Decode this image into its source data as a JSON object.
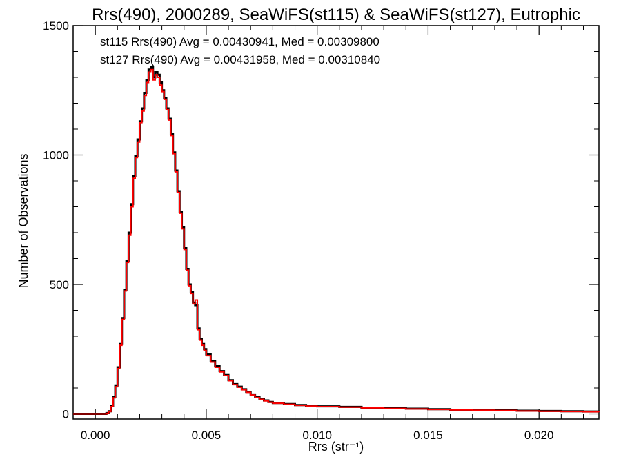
{
  "chart_data": {
    "type": "line",
    "step": true,
    "title": "Rrs(490), 2000289, SeaWiFS(st115) & SeaWiFS(st127), Eutrophic",
    "xlabel": "Rrs (str⁻¹)",
    "ylabel": "Number of Observations",
    "xlim": [
      -0.001,
      0.0227
    ],
    "ylim": [
      -20,
      1500
    ],
    "xticks": [
      "0.000",
      "0.005",
      "0.010",
      "0.015",
      "0.020"
    ],
    "yticks": [
      "0",
      "500",
      "1000",
      "1500"
    ],
    "grid": false,
    "legend_position": "top-left",
    "series": [
      {
        "name": "st115",
        "color": "#000000",
        "annotation": "st115 Rrs(490) Avg = 0.00430941, Med = 0.00309800",
        "points": [
          [
            -0.001,
            0
          ],
          [
            0.0004,
            0
          ],
          [
            0.0005,
            3
          ],
          [
            0.0006,
            10
          ],
          [
            0.0007,
            30
          ],
          [
            0.0008,
            65
          ],
          [
            0.0009,
            110
          ],
          [
            0.001,
            180
          ],
          [
            0.0011,
            270
          ],
          [
            0.0012,
            370
          ],
          [
            0.0013,
            480
          ],
          [
            0.0014,
            590
          ],
          [
            0.0015,
            700
          ],
          [
            0.0016,
            810
          ],
          [
            0.0017,
            920
          ],
          [
            0.0018,
            995
          ],
          [
            0.0019,
            1060
          ],
          [
            0.002,
            1130
          ],
          [
            0.0021,
            1180
          ],
          [
            0.0022,
            1240
          ],
          [
            0.0023,
            1290
          ],
          [
            0.0024,
            1330
          ],
          [
            0.0025,
            1340
          ],
          [
            0.0026,
            1300
          ],
          [
            0.0027,
            1320
          ],
          [
            0.0028,
            1310
          ],
          [
            0.0029,
            1280
          ],
          [
            0.003,
            1250
          ],
          [
            0.0031,
            1220
          ],
          [
            0.0032,
            1180
          ],
          [
            0.0033,
            1140
          ],
          [
            0.0034,
            1080
          ],
          [
            0.0035,
            1010
          ],
          [
            0.0036,
            940
          ],
          [
            0.0037,
            860
          ],
          [
            0.0038,
            780
          ],
          [
            0.0039,
            720
          ],
          [
            0.004,
            640
          ],
          [
            0.0041,
            560
          ],
          [
            0.0042,
            500
          ],
          [
            0.0043,
            470
          ],
          [
            0.0044,
            430
          ],
          [
            0.0045,
            420
          ],
          [
            0.0046,
            330
          ],
          [
            0.0047,
            290
          ],
          [
            0.0048,
            270
          ],
          [
            0.0049,
            250
          ],
          [
            0.005,
            230
          ],
          [
            0.0052,
            205
          ],
          [
            0.0054,
            185
          ],
          [
            0.0056,
            165
          ],
          [
            0.0058,
            150
          ],
          [
            0.006,
            130
          ],
          [
            0.0062,
            115
          ],
          [
            0.0064,
            105
          ],
          [
            0.0066,
            95
          ],
          [
            0.0068,
            85
          ],
          [
            0.007,
            75
          ],
          [
            0.0072,
            65
          ],
          [
            0.0074,
            58
          ],
          [
            0.0076,
            52
          ],
          [
            0.0078,
            46
          ],
          [
            0.008,
            42
          ],
          [
            0.0085,
            38
          ],
          [
            0.009,
            34
          ],
          [
            0.0095,
            31
          ],
          [
            0.01,
            29
          ],
          [
            0.011,
            27
          ],
          [
            0.012,
            24
          ],
          [
            0.013,
            22
          ],
          [
            0.014,
            20
          ],
          [
            0.015,
            18
          ],
          [
            0.016,
            16
          ],
          [
            0.017,
            15
          ],
          [
            0.018,
            14
          ],
          [
            0.019,
            12
          ],
          [
            0.02,
            11
          ],
          [
            0.021,
            10
          ],
          [
            0.022,
            9
          ],
          [
            0.0227,
            8
          ]
        ]
      },
      {
        "name": "st127",
        "color": "#ff0000",
        "annotation": "st127 Rrs(490) Avg = 0.00431958, Med = 0.00310840",
        "points": [
          [
            -0.001,
            0
          ],
          [
            0.0004,
            0
          ],
          [
            0.0005,
            2
          ],
          [
            0.0006,
            9
          ],
          [
            0.0007,
            28
          ],
          [
            0.0008,
            62
          ],
          [
            0.0009,
            105
          ],
          [
            0.001,
            175
          ],
          [
            0.0011,
            265
          ],
          [
            0.0012,
            365
          ],
          [
            0.0013,
            475
          ],
          [
            0.0014,
            585
          ],
          [
            0.0015,
            690
          ],
          [
            0.0016,
            800
          ],
          [
            0.0017,
            910
          ],
          [
            0.0018,
            990
          ],
          [
            0.0019,
            1050
          ],
          [
            0.002,
            1125
          ],
          [
            0.0021,
            1170
          ],
          [
            0.0022,
            1230
          ],
          [
            0.0023,
            1280
          ],
          [
            0.0024,
            1320
          ],
          [
            0.0025,
            1330
          ],
          [
            0.0026,
            1290
          ],
          [
            0.0027,
            1310
          ],
          [
            0.0028,
            1300
          ],
          [
            0.0029,
            1270
          ],
          [
            0.003,
            1245
          ],
          [
            0.0031,
            1215
          ],
          [
            0.0032,
            1175
          ],
          [
            0.0033,
            1135
          ],
          [
            0.0034,
            1075
          ],
          [
            0.0035,
            1005
          ],
          [
            0.0036,
            935
          ],
          [
            0.0037,
            855
          ],
          [
            0.0038,
            775
          ],
          [
            0.0039,
            715
          ],
          [
            0.004,
            635
          ],
          [
            0.0041,
            555
          ],
          [
            0.0042,
            495
          ],
          [
            0.0043,
            465
          ],
          [
            0.0044,
            425
          ],
          [
            0.0045,
            440
          ],
          [
            0.0046,
            325
          ],
          [
            0.0047,
            285
          ],
          [
            0.0048,
            265
          ],
          [
            0.0049,
            245
          ],
          [
            0.005,
            225
          ],
          [
            0.0052,
            200
          ],
          [
            0.0054,
            180
          ],
          [
            0.0056,
            162
          ],
          [
            0.0058,
            148
          ],
          [
            0.006,
            128
          ],
          [
            0.0062,
            113
          ],
          [
            0.0064,
            103
          ],
          [
            0.0066,
            93
          ],
          [
            0.0068,
            83
          ],
          [
            0.007,
            73
          ],
          [
            0.0072,
            63
          ],
          [
            0.0074,
            56
          ],
          [
            0.0076,
            50
          ],
          [
            0.0078,
            45
          ],
          [
            0.008,
            41
          ],
          [
            0.0085,
            37
          ],
          [
            0.009,
            33
          ],
          [
            0.0095,
            30
          ],
          [
            0.01,
            28
          ],
          [
            0.011,
            26
          ],
          [
            0.012,
            23
          ],
          [
            0.013,
            21
          ],
          [
            0.014,
            19
          ],
          [
            0.015,
            17
          ],
          [
            0.016,
            15
          ],
          [
            0.017,
            14
          ],
          [
            0.018,
            13
          ],
          [
            0.019,
            11
          ],
          [
            0.02,
            10
          ],
          [
            0.021,
            9
          ],
          [
            0.022,
            8
          ],
          [
            0.0227,
            7
          ]
        ]
      }
    ]
  }
}
